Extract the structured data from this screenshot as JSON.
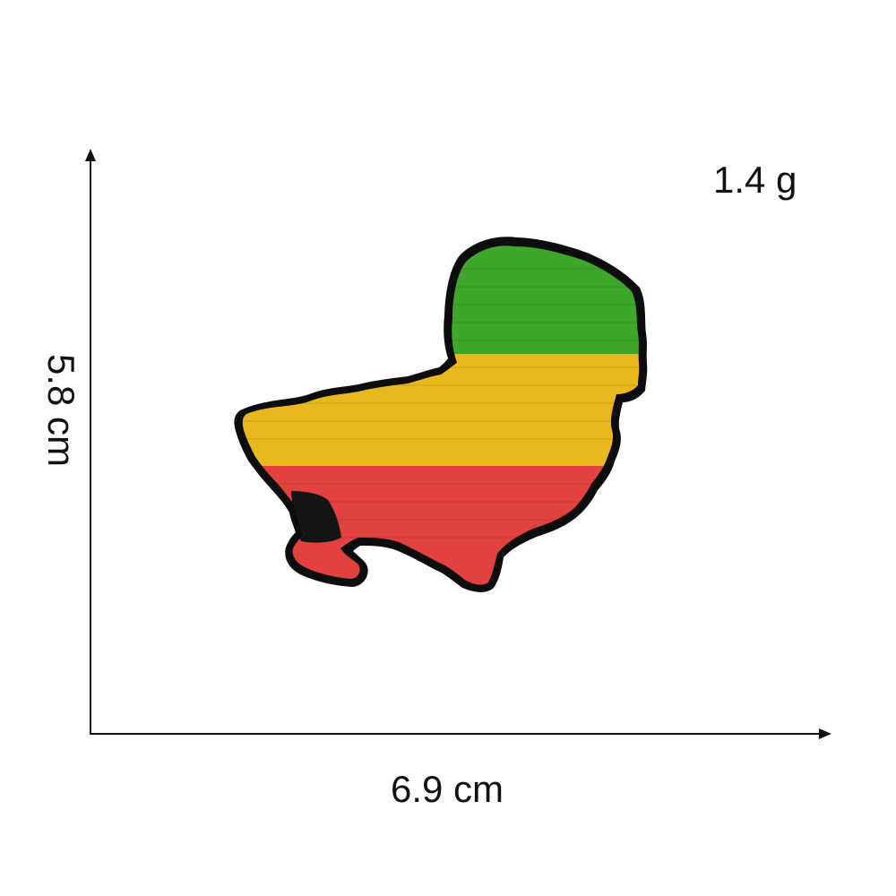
{
  "dimensions": {
    "width_label": "6.9 cm",
    "height_label": "5.8 cm",
    "weight_label": "1.4 g"
  },
  "patch": {
    "description_icon": "embroidered-map-patch",
    "colors": {
      "border": "#0d0d0d",
      "green": "#3ea62a",
      "yellow": "#e8b81e",
      "red": "#e2423f",
      "axis": "#111111"
    }
  }
}
